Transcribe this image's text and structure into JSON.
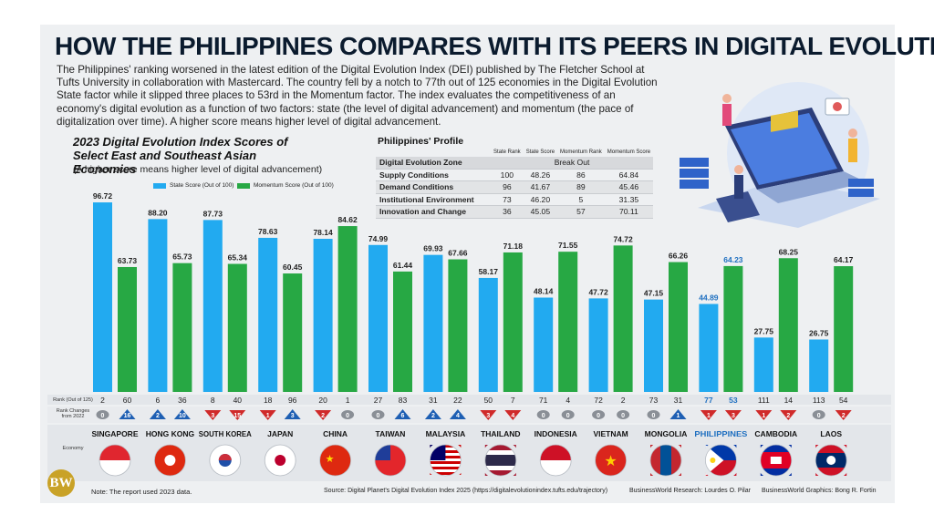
{
  "title": "HOW THE PHILIPPINES COMPARES WITH ITS PEERS IN DIGITAL EVOLUTION",
  "intro": "The Philippines' ranking worsened in the latest edition of the Digital Evolution Index (DEI) published by The Fletcher School at Tufts University in collaboration with Mastercard. The country fell by a notch to 77th out of 125 economies in the Digital Evolution State factor while it slipped three places to 53rd in the Momentum factor. The index evaluates the competitiveness of an economy's digital evolution as a function of two factors: state (the level of digital advancement) and momentum (the pace of digitalization over time). A higher score means higher level of digital advancement.",
  "profile": {
    "title": "Philippines' Profile",
    "headers": [
      "State Rank",
      "State Score",
      "Momentum Rank",
      "Momentum Score"
    ],
    "zone_label": "Digital Evolution Zone",
    "zone_value": "Break Out",
    "rows": [
      {
        "label": "Supply Conditions",
        "state_rank": "100",
        "state_score": "48.26",
        "momentum_rank": "86",
        "momentum_score": "64.84"
      },
      {
        "label": "Demand Conditions",
        "state_rank": "96",
        "state_score": "41.67",
        "momentum_rank": "89",
        "momentum_score": "45.46"
      },
      {
        "label": "Institutional Environment",
        "state_rank": "73",
        "state_score": "46.20",
        "momentum_rank": "5",
        "momentum_score": "31.35"
      },
      {
        "label": "Innovation and Change",
        "state_rank": "36",
        "state_score": "45.05",
        "momentum_rank": "57",
        "momentum_score": "70.11"
      }
    ]
  },
  "chart_data": {
    "type": "bar",
    "title": "2023 Digital Evolution Index Scores of Select East and Southeast Asian Economies",
    "subtitle": "(A higher score means higher level of digital advancement)",
    "categories": [
      "SINGAPORE",
      "HONG KONG",
      "SOUTH KOREA",
      "JAPAN",
      "CHINA",
      "TAIWAN",
      "MALAYSIA",
      "THAILAND",
      "INDONESIA",
      "VIETNAM",
      "MONGOLIA",
      "PHILIPPINES",
      "CAMBODIA",
      "LAOS"
    ],
    "highlight": "PHILIPPINES",
    "ylim": [
      0,
      100
    ],
    "series": [
      {
        "name": "State Score (Out of 100)",
        "color": "#22aaf0",
        "values": [
          96.72,
          88.2,
          87.73,
          78.63,
          78.14,
          74.99,
          69.93,
          58.17,
          48.14,
          47.72,
          47.15,
          44.89,
          27.75,
          26.75
        ],
        "labels": [
          "96.72",
          "88.20",
          "87.73",
          "78.63",
          "78.14",
          "74.99",
          "69.93",
          "58.17",
          "48.14",
          "47.72",
          "47.15",
          "44.89",
          "27.75",
          "26.75"
        ],
        "ranks": [
          "2",
          "6",
          "8",
          "18",
          "20",
          "27",
          "31",
          "50",
          "71",
          "72",
          "73",
          "77",
          "111",
          "113"
        ],
        "rank_changes": [
          0,
          2,
          -3,
          -1,
          -2,
          0,
          2,
          -3,
          0,
          0,
          0,
          -1,
          -1,
          0
        ],
        "rank_change_labels": [
          "0",
          "2",
          "3",
          "1",
          "2",
          "0",
          "2",
          "3",
          "0",
          "0",
          "0",
          "1",
          "1",
          "0"
        ]
      },
      {
        "name": "Momentum Score (Out of 100)",
        "color": "#27a844",
        "values": [
          63.73,
          65.73,
          65.34,
          60.45,
          84.62,
          61.44,
          67.66,
          71.18,
          71.55,
          74.72,
          66.26,
          64.23,
          68.25,
          64.17
        ],
        "labels": [
          "63.73",
          "65.73",
          "65.34",
          "60.45",
          "84.62",
          "61.44",
          "67.66",
          "71.18",
          "71.55",
          "74.72",
          "66.26",
          "64.23",
          "68.25",
          "64.17"
        ],
        "ranks": [
          "60",
          "36",
          "40",
          "96",
          "1",
          "83",
          "22",
          "7",
          "4",
          "2",
          "31",
          "53",
          "14",
          "54"
        ],
        "rank_changes": [
          16,
          10,
          -15,
          3,
          0,
          6,
          4,
          -4,
          0,
          0,
          1,
          -3,
          -2,
          -2
        ],
        "rank_change_labels": [
          "16",
          "10",
          "15",
          "3",
          "0",
          "6",
          "4",
          "4",
          "0",
          "0",
          "1",
          "3",
          "2",
          "2"
        ]
      }
    ],
    "row_labels": {
      "rank": "Rank (Out of 125)",
      "rank_changes": "Rank Changes from 2022",
      "economy": "Economy"
    },
    "colors": {
      "up": "#1e5fb3",
      "down": "#d02a2a",
      "zero": "#8a8f96",
      "highlight_text": "#1e6fc0"
    }
  },
  "footer": {
    "note": "Note: The report used 2023 data.",
    "source": "Source: Digital Planet's Digital Evolution Index 2025 (https://digitalevolutionindex.tufts.edu/trajectory)",
    "research": "BusinessWorld Research: Lourdes O. Pilar",
    "graphics": "BusinessWorld Graphics: Bong R. Fortin",
    "logo": "BW"
  }
}
